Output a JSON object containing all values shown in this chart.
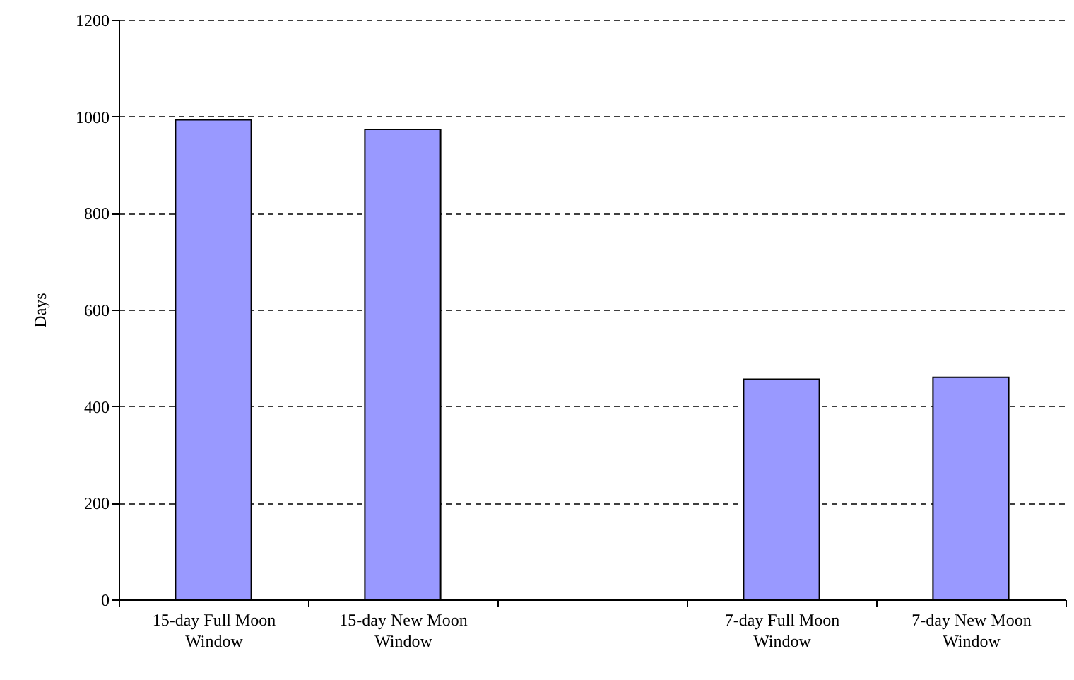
{
  "chart_data": {
    "type": "bar",
    "ylabel": "Days",
    "categories": [
      "15-day Full Moon Window",
      "15-day New Moon Window",
      null,
      "7-day Full Moon Window",
      "7-day New Moon Window"
    ],
    "values": [
      993,
      973,
      null,
      456,
      460
    ],
    "color": "#9999ff",
    "ylim": [
      0,
      1200
    ],
    "yticks": [
      0,
      200,
      400,
      600,
      800,
      1000,
      1200
    ],
    "grid": "y"
  }
}
